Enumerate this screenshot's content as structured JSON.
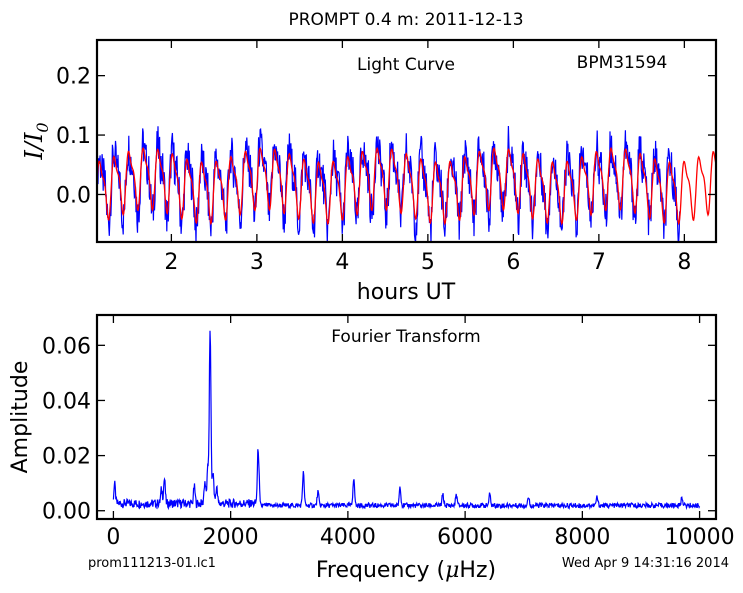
{
  "title": "PROMPT 0.4 m:  2011-12-13",
  "footer": {
    "left": "prom111213-01.lc1",
    "right": "Wed Apr  9 14:31:16 2014"
  },
  "colors": {
    "observed": "#0000ff",
    "model": "#ff0000",
    "axes": "#000000"
  },
  "chart_data": [
    {
      "type": "line",
      "title": "Light Curve",
      "annotation": "BPM31594",
      "xlabel": "hours UT",
      "ylabel_main": "I/I",
      "ylabel_sub": "0",
      "xlim": [
        1.13,
        8.37
      ],
      "ylim": [
        -0.08,
        0.26
      ],
      "xticks": [
        2,
        3,
        4,
        5,
        6,
        7,
        8
      ],
      "xtick_labels": [
        "2",
        "3",
        "4",
        "5",
        "6",
        "7",
        "8"
      ],
      "yticks": [
        0.0,
        0.1,
        0.2
      ],
      "ytick_labels": [
        "0.0",
        "0.1",
        "0.2"
      ],
      "grid": false,
      "series": [
        {
          "color": "#0000ff",
          "mean": 0.02,
          "amplitude": 0.05,
          "period_h": 0.171,
          "x_end": 7.95
        },
        {
          "color": "#ff0000",
          "mean": 0.02,
          "amplitude": 0.045,
          "period_h": 0.171,
          "x_end": 8.37
        }
      ]
    },
    {
      "type": "line",
      "title": "Fourier Transform",
      "xlabel": "Frequency (",
      "xlabel_mu": "μ",
      "xlabel_end": "Hz)",
      "ylabel": "Amplitude",
      "xlim": [
        -280,
        10280
      ],
      "ylim": [
        -0.003,
        0.071
      ],
      "xticks": [
        0,
        2000,
        4000,
        6000,
        8000,
        10000
      ],
      "xtick_labels": [
        "0",
        "2000",
        "4000",
        "6000",
        "8000",
        "10000"
      ],
      "yticks": [
        0.0,
        0.02,
        0.04,
        0.06
      ],
      "ytick_labels": [
        "0.00",
        "0.02",
        "0.04",
        "0.06"
      ],
      "grid": false,
      "peaks": [
        {
          "x": 20,
          "y": 0.007
        },
        {
          "x": 820,
          "y": 0.005
        },
        {
          "x": 870,
          "y": 0.009
        },
        {
          "x": 1380,
          "y": 0.006
        },
        {
          "x": 1560,
          "y": 0.008
        },
        {
          "x": 1610,
          "y": 0.012
        },
        {
          "x": 1650,
          "y": 0.062
        },
        {
          "x": 1700,
          "y": 0.011
        },
        {
          "x": 1760,
          "y": 0.006
        },
        {
          "x": 2470,
          "y": 0.02
        },
        {
          "x": 3240,
          "y": 0.012
        },
        {
          "x": 3490,
          "y": 0.005
        },
        {
          "x": 4100,
          "y": 0.01
        },
        {
          "x": 4890,
          "y": 0.007
        },
        {
          "x": 5620,
          "y": 0.004
        },
        {
          "x": 5850,
          "y": 0.004
        },
        {
          "x": 6420,
          "y": 0.004
        },
        {
          "x": 7080,
          "y": 0.003
        },
        {
          "x": 8250,
          "y": 0.003
        },
        {
          "x": 9700,
          "y": 0.003
        }
      ]
    }
  ]
}
